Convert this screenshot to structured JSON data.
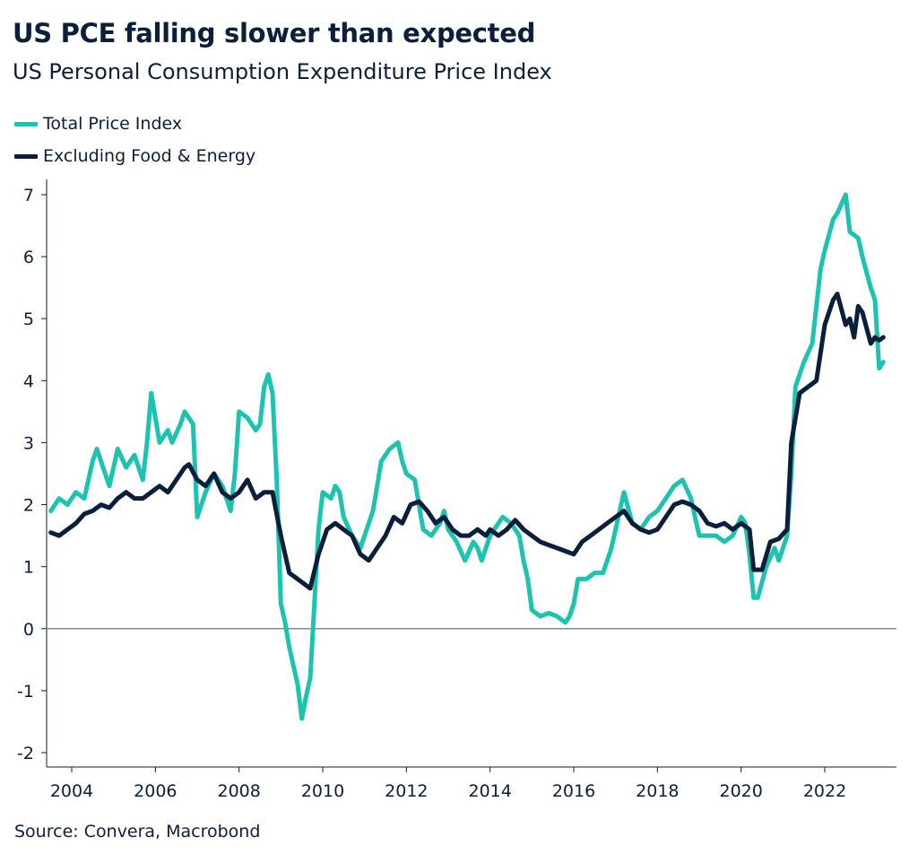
{
  "title": "US PCE falling slower than expected",
  "subtitle": "US Personal Consumption Expenditure Price Index",
  "source": "Source: Convera, Macrobond",
  "colors": {
    "total": "#1cc4b0",
    "core": "#0b1f3a",
    "zero_line": "#888888",
    "axis": "#0b1f3a"
  },
  "chart_data": {
    "type": "line",
    "title": "US PCE falling slower than expected",
    "subtitle": "US Personal Consumption Expenditure Price Index",
    "xlim": [
      2003.5,
      2023.5
    ],
    "ylim": [
      -2.2,
      7.3
    ],
    "x_ticks": [
      2004,
      2006,
      2008,
      2010,
      2012,
      2014,
      2016,
      2018,
      2020,
      2022
    ],
    "y_ticks": [
      7,
      6,
      5,
      4,
      3,
      2,
      1,
      0,
      -1,
      -2
    ],
    "legend_position": "top-left",
    "series": [
      {
        "name": "Total Price Index",
        "color": "#1cc4b0",
        "points": [
          [
            2003.5,
            1.9
          ],
          [
            2003.7,
            2.1
          ],
          [
            2003.9,
            2.0
          ],
          [
            2004.1,
            2.2
          ],
          [
            2004.3,
            2.1
          ],
          [
            2004.5,
            2.7
          ],
          [
            2004.6,
            2.9
          ],
          [
            2004.8,
            2.5
          ],
          [
            2004.9,
            2.3
          ],
          [
            2005.1,
            2.9
          ],
          [
            2005.3,
            2.6
          ],
          [
            2005.5,
            2.8
          ],
          [
            2005.7,
            2.4
          ],
          [
            2005.8,
            3.0
          ],
          [
            2005.9,
            3.8
          ],
          [
            2006.1,
            3.0
          ],
          [
            2006.3,
            3.2
          ],
          [
            2006.4,
            3.0
          ],
          [
            2006.6,
            3.3
          ],
          [
            2006.7,
            3.5
          ],
          [
            2006.9,
            3.3
          ],
          [
            2007.0,
            1.8
          ],
          [
            2007.2,
            2.2
          ],
          [
            2007.4,
            2.5
          ],
          [
            2007.6,
            2.3
          ],
          [
            2007.8,
            1.9
          ],
          [
            2007.9,
            2.5
          ],
          [
            2008.0,
            3.5
          ],
          [
            2008.2,
            3.4
          ],
          [
            2008.4,
            3.2
          ],
          [
            2008.5,
            3.3
          ],
          [
            2008.6,
            3.9
          ],
          [
            2008.7,
            4.1
          ],
          [
            2008.8,
            3.8
          ],
          [
            2008.9,
            2.4
          ],
          [
            2009.0,
            0.4
          ],
          [
            2009.1,
            0.1
          ],
          [
            2009.2,
            -0.3
          ],
          [
            2009.3,
            -0.6
          ],
          [
            2009.4,
            -0.9
          ],
          [
            2009.5,
            -1.45
          ],
          [
            2009.6,
            -1.1
          ],
          [
            2009.7,
            -0.8
          ],
          [
            2009.8,
            0.4
          ],
          [
            2009.9,
            1.6
          ],
          [
            2010.0,
            2.2
          ],
          [
            2010.2,
            2.1
          ],
          [
            2010.3,
            2.3
          ],
          [
            2010.4,
            2.2
          ],
          [
            2010.5,
            1.8
          ],
          [
            2010.7,
            1.5
          ],
          [
            2010.9,
            1.3
          ],
          [
            2011.0,
            1.5
          ],
          [
            2011.2,
            1.9
          ],
          [
            2011.3,
            2.3
          ],
          [
            2011.4,
            2.7
          ],
          [
            2011.6,
            2.9
          ],
          [
            2011.8,
            3.0
          ],
          [
            2011.9,
            2.7
          ],
          [
            2012.0,
            2.5
          ],
          [
            2012.2,
            2.4
          ],
          [
            2012.3,
            2.0
          ],
          [
            2012.4,
            1.6
          ],
          [
            2012.6,
            1.5
          ],
          [
            2012.8,
            1.7
          ],
          [
            2012.9,
            1.9
          ],
          [
            2013.0,
            1.6
          ],
          [
            2013.2,
            1.4
          ],
          [
            2013.4,
            1.1
          ],
          [
            2013.6,
            1.4
          ],
          [
            2013.7,
            1.3
          ],
          [
            2013.8,
            1.1
          ],
          [
            2014.0,
            1.5
          ],
          [
            2014.2,
            1.7
          ],
          [
            2014.3,
            1.8
          ],
          [
            2014.5,
            1.7
          ],
          [
            2014.7,
            1.5
          ],
          [
            2014.8,
            1.1
          ],
          [
            2014.9,
            0.8
          ],
          [
            2015.0,
            0.3
          ],
          [
            2015.2,
            0.2
          ],
          [
            2015.4,
            0.25
          ],
          [
            2015.6,
            0.2
          ],
          [
            2015.8,
            0.1
          ],
          [
            2015.9,
            0.2
          ],
          [
            2016.0,
            0.4
          ],
          [
            2016.1,
            0.8
          ],
          [
            2016.3,
            0.8
          ],
          [
            2016.5,
            0.9
          ],
          [
            2016.7,
            0.9
          ],
          [
            2016.9,
            1.3
          ],
          [
            2017.1,
            1.9
          ],
          [
            2017.2,
            2.2
          ],
          [
            2017.4,
            1.7
          ],
          [
            2017.6,
            1.6
          ],
          [
            2017.8,
            1.8
          ],
          [
            2018.0,
            1.9
          ],
          [
            2018.2,
            2.1
          ],
          [
            2018.4,
            2.3
          ],
          [
            2018.6,
            2.4
          ],
          [
            2018.8,
            2.1
          ],
          [
            2018.9,
            1.8
          ],
          [
            2019.0,
            1.5
          ],
          [
            2019.2,
            1.5
          ],
          [
            2019.4,
            1.5
          ],
          [
            2019.6,
            1.4
          ],
          [
            2019.8,
            1.5
          ],
          [
            2020.0,
            1.8
          ],
          [
            2020.1,
            1.7
          ],
          [
            2020.2,
            1.2
          ],
          [
            2020.3,
            0.5
          ],
          [
            2020.4,
            0.5
          ],
          [
            2020.6,
            1.0
          ],
          [
            2020.8,
            1.3
          ],
          [
            2020.9,
            1.1
          ],
          [
            2021.1,
            1.5
          ],
          [
            2021.2,
            2.5
          ],
          [
            2021.3,
            3.9
          ],
          [
            2021.5,
            4.3
          ],
          [
            2021.7,
            4.6
          ],
          [
            2021.9,
            5.8
          ],
          [
            2022.0,
            6.1
          ],
          [
            2022.2,
            6.6
          ],
          [
            2022.3,
            6.7
          ],
          [
            2022.5,
            7.0
          ],
          [
            2022.6,
            6.4
          ],
          [
            2022.8,
            6.3
          ],
          [
            2022.9,
            6.0
          ],
          [
            2023.1,
            5.5
          ],
          [
            2023.2,
            5.3
          ],
          [
            2023.3,
            4.2
          ],
          [
            2023.4,
            4.3
          ]
        ]
      },
      {
        "name": "Excluding Food & Energy",
        "color": "#0b1f3a",
        "points": [
          [
            2003.5,
            1.55
          ],
          [
            2003.7,
            1.5
          ],
          [
            2003.9,
            1.6
          ],
          [
            2004.1,
            1.7
          ],
          [
            2004.3,
            1.85
          ],
          [
            2004.5,
            1.9
          ],
          [
            2004.7,
            2.0
          ],
          [
            2004.9,
            1.95
          ],
          [
            2005.1,
            2.1
          ],
          [
            2005.3,
            2.2
          ],
          [
            2005.5,
            2.1
          ],
          [
            2005.7,
            2.1
          ],
          [
            2005.9,
            2.2
          ],
          [
            2006.1,
            2.3
          ],
          [
            2006.3,
            2.2
          ],
          [
            2006.5,
            2.4
          ],
          [
            2006.7,
            2.6
          ],
          [
            2006.8,
            2.65
          ],
          [
            2007.0,
            2.4
          ],
          [
            2007.2,
            2.3
          ],
          [
            2007.4,
            2.5
          ],
          [
            2007.6,
            2.2
          ],
          [
            2007.8,
            2.1
          ],
          [
            2008.0,
            2.2
          ],
          [
            2008.2,
            2.4
          ],
          [
            2008.4,
            2.1
          ],
          [
            2008.6,
            2.2
          ],
          [
            2008.8,
            2.2
          ],
          [
            2009.0,
            1.5
          ],
          [
            2009.2,
            0.9
          ],
          [
            2009.4,
            0.8
          ],
          [
            2009.6,
            0.7
          ],
          [
            2009.7,
            0.65
          ],
          [
            2009.9,
            1.2
          ],
          [
            2010.1,
            1.6
          ],
          [
            2010.3,
            1.7
          ],
          [
            2010.5,
            1.6
          ],
          [
            2010.7,
            1.5
          ],
          [
            2010.9,
            1.2
          ],
          [
            2011.1,
            1.1
          ],
          [
            2011.3,
            1.3
          ],
          [
            2011.5,
            1.5
          ],
          [
            2011.7,
            1.8
          ],
          [
            2011.9,
            1.7
          ],
          [
            2012.1,
            2.0
          ],
          [
            2012.3,
            2.05
          ],
          [
            2012.5,
            1.9
          ],
          [
            2012.7,
            1.7
          ],
          [
            2012.9,
            1.8
          ],
          [
            2013.1,
            1.6
          ],
          [
            2013.3,
            1.5
          ],
          [
            2013.5,
            1.5
          ],
          [
            2013.7,
            1.6
          ],
          [
            2013.9,
            1.5
          ],
          [
            2014.0,
            1.6
          ],
          [
            2014.2,
            1.5
          ],
          [
            2014.4,
            1.6
          ],
          [
            2014.6,
            1.75
          ],
          [
            2014.8,
            1.6
          ],
          [
            2015.0,
            1.5
          ],
          [
            2015.2,
            1.4
          ],
          [
            2015.4,
            1.35
          ],
          [
            2015.6,
            1.3
          ],
          [
            2015.8,
            1.25
          ],
          [
            2016.0,
            1.2
          ],
          [
            2016.2,
            1.4
          ],
          [
            2016.4,
            1.5
          ],
          [
            2016.6,
            1.6
          ],
          [
            2016.8,
            1.7
          ],
          [
            2017.0,
            1.8
          ],
          [
            2017.2,
            1.9
          ],
          [
            2017.4,
            1.7
          ],
          [
            2017.6,
            1.6
          ],
          [
            2017.8,
            1.55
          ],
          [
            2018.0,
            1.6
          ],
          [
            2018.2,
            1.8
          ],
          [
            2018.4,
            2.0
          ],
          [
            2018.6,
            2.05
          ],
          [
            2018.8,
            2.0
          ],
          [
            2019.0,
            1.9
          ],
          [
            2019.2,
            1.7
          ],
          [
            2019.4,
            1.65
          ],
          [
            2019.6,
            1.7
          ],
          [
            2019.8,
            1.6
          ],
          [
            2020.0,
            1.7
          ],
          [
            2020.2,
            1.6
          ],
          [
            2020.3,
            0.95
          ],
          [
            2020.5,
            0.95
          ],
          [
            2020.7,
            1.4
          ],
          [
            2020.9,
            1.45
          ],
          [
            2021.1,
            1.6
          ],
          [
            2021.2,
            3.0
          ],
          [
            2021.4,
            3.8
          ],
          [
            2021.6,
            3.9
          ],
          [
            2021.8,
            4.0
          ],
          [
            2022.0,
            4.9
          ],
          [
            2022.2,
            5.3
          ],
          [
            2022.3,
            5.4
          ],
          [
            2022.5,
            4.9
          ],
          [
            2022.6,
            5.0
          ],
          [
            2022.7,
            4.7
          ],
          [
            2022.8,
            5.2
          ],
          [
            2022.9,
            5.1
          ],
          [
            2023.1,
            4.6
          ],
          [
            2023.2,
            4.7
          ],
          [
            2023.3,
            4.65
          ],
          [
            2023.4,
            4.7
          ]
        ]
      }
    ]
  }
}
